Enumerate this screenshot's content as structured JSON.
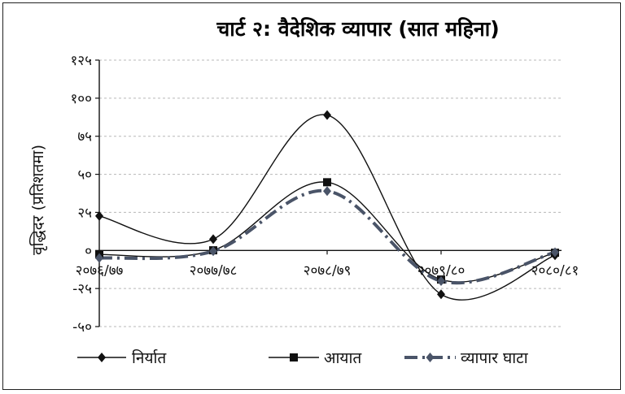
{
  "chart_data": {
    "type": "line",
    "title": "चार्ट २: वैदेशिक व्यापार (सात महिना)",
    "xlabel": "",
    "ylabel": "वृद्धिदर (प्रतिशतमा)",
    "categories": [
      "२०७६/७७",
      "२०७७/७८",
      "२०७८/७९",
      "२०७९/८०",
      "२०८०/८१"
    ],
    "ylim": [
      -50,
      125
    ],
    "yticks": [
      -50,
      -25,
      0,
      25,
      50,
      75,
      100,
      125
    ],
    "ytick_labels": [
      "-५०",
      "-२५",
      "०",
      "२५",
      "५०",
      "७५",
      "१००",
      "१२५"
    ],
    "grid": true,
    "legend_position": "bottom",
    "series": [
      {
        "name": "निर्यात",
        "values": [
          22.6,
          7.4,
          88.9,
          -28.8,
          -3.2
        ],
        "color": "#111111",
        "marker": "diamond",
        "style": "solid"
      },
      {
        "name": "आयात",
        "values": [
          -2.7,
          0.1,
          44.8,
          -19.1,
          -1.5
        ],
        "color": "#111111",
        "marker": "square",
        "style": "solid"
      },
      {
        "name": "व्यापार घाटा",
        "values": [
          -5,
          -0.5,
          39,
          -20.1,
          -1.2
        ],
        "color": "#4a5468",
        "marker": "diamond",
        "style": "dashdot"
      }
    ]
  }
}
